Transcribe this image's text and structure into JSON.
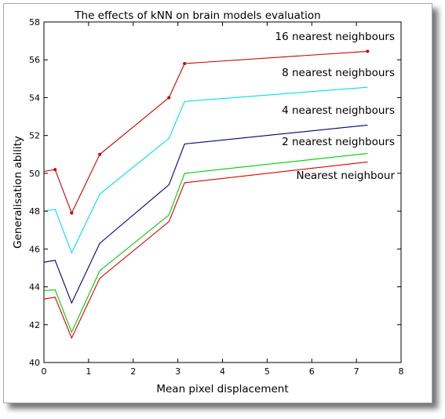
{
  "chart_data": {
    "type": "line",
    "title": "The effects of kNN on brain models evaluation",
    "xlabel": "Mean pixel displacement",
    "ylabel": "Generalisation ability",
    "xlim": [
      0,
      8
    ],
    "ylim": [
      40,
      58
    ],
    "xticks": [
      "0",
      "1",
      "2",
      "3",
      "4",
      "5",
      "6",
      "7",
      "8"
    ],
    "yticks": [
      "40",
      "42",
      "44",
      "46",
      "48",
      "50",
      "52",
      "54",
      "56",
      "58"
    ],
    "grid": false,
    "x": [
      0,
      0.25,
      0.62,
      1.25,
      2.8,
      3.15,
      7.25
    ],
    "series": [
      {
        "name": "16 nearest neighbours",
        "color": "#cc0000",
        "markers": true,
        "values": [
          50.1,
          50.2,
          47.9,
          51.0,
          54.0,
          55.8,
          56.45
        ]
      },
      {
        "name": "8 nearest neighbours",
        "color": "#00e0e8",
        "markers": false,
        "values": [
          48.0,
          48.1,
          45.8,
          48.9,
          51.85,
          53.8,
          54.55
        ]
      },
      {
        "name": "4 nearest neighbours",
        "color": "#00007a",
        "markers": false,
        "values": [
          45.3,
          45.4,
          43.15,
          46.3,
          49.4,
          51.55,
          52.55
        ]
      },
      {
        "name": "2 nearest neighbours",
        "color": "#00cc00",
        "markers": false,
        "values": [
          43.8,
          43.85,
          41.6,
          44.85,
          47.8,
          50.0,
          51.05
        ]
      },
      {
        "name": "Nearest neighbour",
        "color": "#dd0000",
        "markers": false,
        "values": [
          43.35,
          43.45,
          41.3,
          44.45,
          47.45,
          49.5,
          50.6
        ]
      }
    ]
  }
}
